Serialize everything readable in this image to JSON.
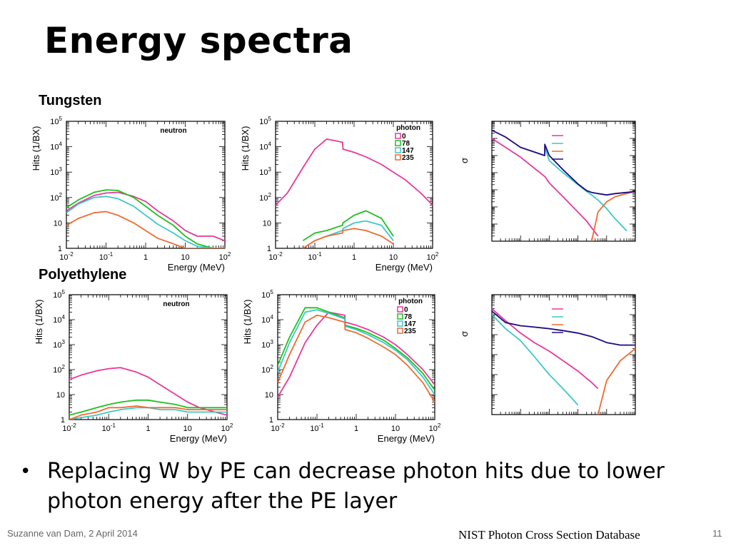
{
  "slide": {
    "title": "Energy spectra",
    "section_tungsten": "Tungsten",
    "section_polyethylene": "Polyethylene",
    "bullet": "Replacing W by PE can decrease photon hits due to lower photon energy after the PE layer",
    "footer_left": "Suzanne van Dam, 2 April 2014",
    "footer_source": "NIST Photon Cross Section Database",
    "page_number": "11"
  },
  "colors": {
    "series_0": "#e8389a",
    "series_78": "#1ec01e",
    "series_147": "#3cc8c8",
    "series_235": "#f06a30",
    "series_total": "#1a0a80"
  },
  "chart_data": [
    {
      "id": "tungsten-neutron",
      "type": "line",
      "annotation": "neutron",
      "xscale": "log",
      "yscale": "log",
      "xlim": [
        0.01,
        100
      ],
      "ylim": [
        1,
        100000
      ],
      "xlabel": "Energy (MeV)",
      "ylabel": "Hits (1/BX)",
      "xticks": [
        "10-2",
        "10-1",
        "1",
        "10",
        "102"
      ],
      "yticks": [
        "1",
        "10",
        "102",
        "103",
        "104",
        "105"
      ],
      "x": [
        0.01,
        0.02,
        0.05,
        0.1,
        0.2,
        0.5,
        1,
        2,
        5,
        10,
        20,
        50,
        100
      ],
      "series": [
        {
          "color_key": "series_0",
          "values": [
            30,
            60,
            120,
            150,
            160,
            110,
            70,
            30,
            12,
            5,
            3,
            3,
            2
          ]
        },
        {
          "color_key": "series_78",
          "values": [
            40,
            80,
            160,
            200,
            190,
            100,
            45,
            20,
            8,
            3,
            1.5,
            1,
            1
          ]
        },
        {
          "color_key": "series_147",
          "values": [
            25,
            55,
            100,
            110,
            90,
            45,
            20,
            9,
            4,
            2,
            1.2,
            1,
            1
          ]
        },
        {
          "color_key": "series_235",
          "values": [
            8,
            15,
            25,
            28,
            20,
            10,
            5,
            2.5,
            1.5,
            1,
            1,
            1,
            1
          ]
        }
      ]
    },
    {
      "id": "tungsten-photon",
      "type": "line",
      "annotation": "photon",
      "legend": [
        "0",
        "78",
        "147",
        "235"
      ],
      "xscale": "log",
      "yscale": "log",
      "xlim": [
        0.01,
        100
      ],
      "ylim": [
        1,
        100000
      ],
      "xlabel": "Energy (MeV)",
      "ylabel": "Hits (1/BX)",
      "xticks": [
        "10-2",
        "10-1",
        "1",
        "10",
        "102"
      ],
      "yticks": [
        "1",
        "10",
        "102",
        "103",
        "104",
        "105"
      ],
      "x": [
        0.01,
        0.02,
        0.05,
        0.1,
        0.2,
        0.5,
        0.511,
        0.52,
        1,
        2,
        5,
        10,
        20,
        50,
        100
      ],
      "series": [
        {
          "color_key": "series_0",
          "values": [
            50,
            150,
            1500,
            8000,
            20000,
            15000,
            15000,
            8000,
            6000,
            4000,
            2000,
            1000,
            500,
            150,
            50
          ]
        },
        {
          "color_key": "series_78",
          "values": [
            null,
            null,
            2,
            4,
            5,
            8,
            8,
            10,
            20,
            30,
            15,
            3,
            null,
            null,
            null
          ]
        },
        {
          "color_key": "series_147",
          "values": [
            null,
            null,
            1,
            2,
            3,
            5,
            5,
            6,
            10,
            12,
            8,
            2,
            null,
            null,
            null
          ]
        },
        {
          "color_key": "series_235",
          "values": [
            null,
            null,
            1,
            2,
            3,
            4,
            4,
            5,
            6,
            5,
            3,
            1.5,
            null,
            null,
            null
          ]
        }
      ]
    },
    {
      "id": "polyethylene-neutron",
      "type": "line",
      "annotation": "neutron",
      "xscale": "log",
      "yscale": "log",
      "xlim": [
        0.01,
        100
      ],
      "ylim": [
        1,
        100000
      ],
      "xlabel": "Energy (MeV)",
      "ylabel": "Hits (1/BX)",
      "xticks": [
        "10-2",
        "10-1",
        "1",
        "10",
        "102"
      ],
      "yticks": [
        "1",
        "10",
        "102",
        "103",
        "104",
        "105"
      ],
      "x": [
        0.01,
        0.02,
        0.05,
        0.1,
        0.2,
        0.5,
        1,
        2,
        5,
        10,
        20,
        50,
        100
      ],
      "series": [
        {
          "color_key": "series_0",
          "values": [
            40,
            60,
            90,
            110,
            120,
            80,
            50,
            25,
            10,
            5,
            3,
            2,
            1.5
          ]
        },
        {
          "color_key": "series_78",
          "values": [
            1.5,
            2,
            3,
            4,
            5,
            6,
            6,
            5,
            4,
            3,
            3,
            3,
            3
          ]
        },
        {
          "color_key": "series_147",
          "values": [
            1,
            1.2,
            1.5,
            2,
            2.5,
            3,
            3,
            2.5,
            2.5,
            2,
            2,
            2,
            2
          ]
        },
        {
          "color_key": "series_235",
          "values": [
            1,
            1.5,
            2,
            3,
            3,
            3.5,
            3,
            3,
            3,
            2.5,
            2.5,
            2.5,
            2.5
          ]
        }
      ]
    },
    {
      "id": "polyethylene-photon",
      "type": "line",
      "annotation": "photon",
      "legend": [
        "0",
        "78",
        "147",
        "235"
      ],
      "xscale": "log",
      "yscale": "log",
      "xlim": [
        0.01,
        100
      ],
      "ylim": [
        1,
        100000
      ],
      "xlabel": "Energy (MeV)",
      "ylabel": "Hits (1/BX)",
      "xticks": [
        "10-2",
        "10-1",
        "1",
        "10",
        "102"
      ],
      "yticks": [
        "1",
        "10",
        "102",
        "103",
        "104",
        "105"
      ],
      "x": [
        0.01,
        0.02,
        0.05,
        0.1,
        0.2,
        0.5,
        0.511,
        0.52,
        1,
        2,
        5,
        10,
        20,
        50,
        100
      ],
      "series": [
        {
          "color_key": "series_0",
          "values": [
            8,
            50,
            1200,
            6000,
            20000,
            15000,
            15000,
            8000,
            6000,
            4000,
            2000,
            1000,
            400,
            100,
            25
          ]
        },
        {
          "color_key": "series_78",
          "values": [
            150,
            2000,
            30000,
            30000,
            20000,
            12000,
            12000,
            6000,
            4500,
            3000,
            1500,
            700,
            300,
            70,
            15
          ]
        },
        {
          "color_key": "series_147",
          "values": [
            80,
            1200,
            20000,
            25000,
            18000,
            11000,
            11000,
            5500,
            4000,
            2500,
            1200,
            600,
            250,
            50,
            10
          ]
        },
        {
          "color_key": "series_235",
          "values": [
            30,
            400,
            8000,
            15000,
            12000,
            8000,
            8000,
            4000,
            3000,
            1800,
            800,
            400,
            150,
            30,
            5
          ]
        }
      ]
    },
    {
      "id": "tungsten-cross-section",
      "type": "line",
      "ylabel": "σ",
      "xscale": "log",
      "yscale": "log",
      "xlim": [
        0.001,
        100
      ],
      "ylim": [
        0.01,
        100000
      ],
      "x": [
        0.001,
        0.003,
        0.01,
        0.0695,
        0.07,
        0.1,
        0.3,
        1,
        2,
        3,
        5,
        10,
        20,
        50,
        100
      ],
      "series": [
        {
          "color_key": "series_0",
          "values": [
            10000,
            3000,
            800,
            60,
            60,
            25,
            4,
            0.5,
            0.15,
            0.06,
            0.02,
            null,
            null,
            null,
            null
          ]
        },
        {
          "color_key": "series_147",
          "values": [
            null,
            null,
            null,
            null,
            3000,
            500,
            100,
            20,
            8,
            5,
            2.5,
            0.8,
            0.2,
            0.04,
            null
          ]
        },
        {
          "color_key": "series_235",
          "values": [
            null,
            null,
            null,
            null,
            null,
            null,
            null,
            null,
            null,
            0.01,
            0.5,
            2,
            4,
            6,
            8
          ]
        },
        {
          "color_key": "series_total",
          "values": [
            30000,
            12000,
            3000,
            1000,
            4500,
            1000,
            150,
            22,
            9,
            7,
            6,
            5,
            6,
            7,
            8
          ]
        }
      ]
    },
    {
      "id": "polyethylene-cross-section",
      "type": "line",
      "ylabel": "σ",
      "xscale": "log",
      "yscale": "log",
      "xlim": [
        0.001,
        100
      ],
      "ylim": [
        0.0001,
        100
      ],
      "x": [
        0.001,
        0.003,
        0.01,
        0.03,
        0.1,
        0.3,
        1,
        3,
        5,
        10,
        30,
        100
      ],
      "series": [
        {
          "color_key": "series_0",
          "values": [
            20,
            5,
            1.2,
            0.4,
            0.15,
            0.05,
            0.015,
            0.004,
            0.002,
            null,
            null,
            null
          ]
        },
        {
          "color_key": "series_147",
          "values": [
            10,
            2,
            0.5,
            0.08,
            0.01,
            0.002,
            0.0003,
            null,
            null,
            null,
            null,
            null
          ]
        },
        {
          "color_key": "series_235",
          "values": [
            null,
            null,
            null,
            null,
            null,
            null,
            null,
            null,
            0.0001,
            0.005,
            0.05,
            0.2
          ]
        },
        {
          "color_key": "series_total",
          "values": [
            15,
            4,
            2.8,
            2.4,
            2.0,
            1.6,
            1.2,
            0.8,
            0.6,
            0.4,
            0.3,
            0.3
          ]
        }
      ]
    }
  ]
}
